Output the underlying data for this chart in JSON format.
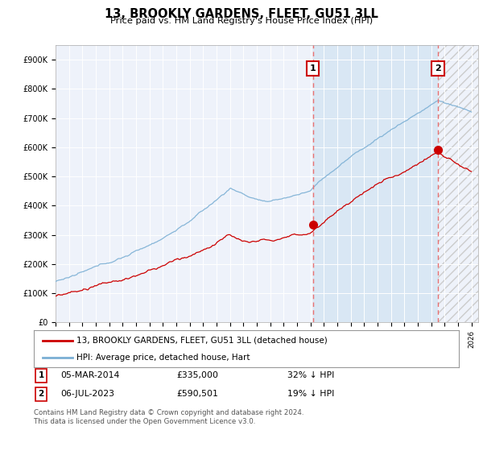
{
  "title": "13, BROOKLY GARDENS, FLEET, GU51 3LL",
  "subtitle": "Price paid vs. HM Land Registry's House Price Index (HPI)",
  "ylim": [
    0,
    950000
  ],
  "yticks": [
    0,
    100000,
    200000,
    300000,
    400000,
    500000,
    600000,
    700000,
    800000,
    900000
  ],
  "xlim_start": 1995.0,
  "xlim_end": 2026.5,
  "hpi_color": "#7bafd4",
  "price_color": "#cc0000",
  "vline_color": "#e87070",
  "sale1_year": 2014.17,
  "sale1_price": 335000,
  "sale1_label": "1",
  "sale2_year": 2023.5,
  "sale2_price": 590501,
  "sale2_label": "2",
  "legend_property": "13, BROOKLY GARDENS, FLEET, GU51 3LL (detached house)",
  "legend_hpi": "HPI: Average price, detached house, Hart",
  "background_color": "#ffffff",
  "plot_bg_color": "#eef2fa",
  "shade_between_color": "#dce8f5",
  "shade_after_color": "#e8e8e8",
  "hatch_color": "#bbbbbb"
}
